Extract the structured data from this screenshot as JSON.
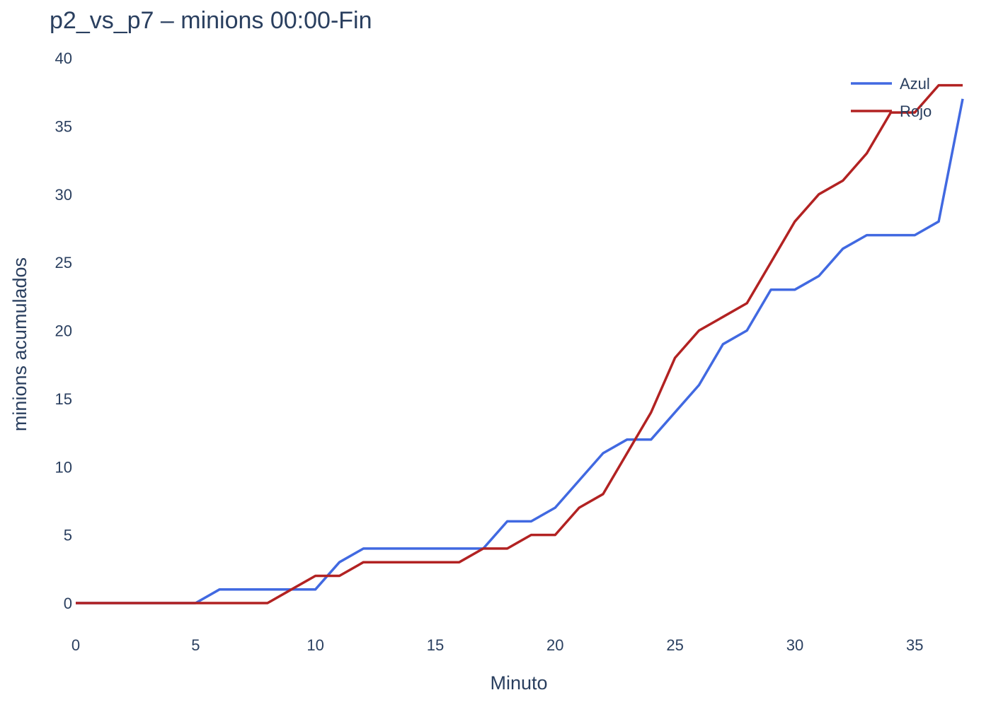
{
  "chart_data": {
    "type": "line",
    "title": "p2_vs_p7 – minions 00:00-Fin",
    "xlabel": "Minuto",
    "ylabel": "minions acumulados",
    "xlim": [
      0,
      37
    ],
    "ylim": [
      -2.2,
      40
    ],
    "x_ticks": [
      0,
      5,
      10,
      15,
      20,
      25,
      30,
      35
    ],
    "y_ticks": [
      0,
      5,
      10,
      15,
      20,
      25,
      30,
      35,
      40
    ],
    "grid": false,
    "legend_position": "top-right",
    "x": [
      0,
      1,
      2,
      3,
      4,
      5,
      6,
      7,
      8,
      9,
      10,
      11,
      12,
      13,
      14,
      15,
      16,
      17,
      18,
      19,
      20,
      21,
      22,
      23,
      24,
      25,
      26,
      27,
      28,
      29,
      30,
      31,
      32,
      33,
      34,
      35,
      36,
      37
    ],
    "series": [
      {
        "name": "Azul",
        "color": "#4169e1",
        "values": [
          0,
          0,
          0,
          0,
          0,
          0,
          1,
          1,
          1,
          1,
          1,
          3,
          4,
          4,
          4,
          4,
          4,
          4,
          6,
          6,
          7,
          9,
          11,
          12,
          12,
          14,
          16,
          19,
          20,
          23,
          23,
          24,
          26,
          27,
          27,
          27,
          28,
          37
        ]
      },
      {
        "name": "Rojo",
        "color": "#b22222",
        "values": [
          0,
          0,
          0,
          0,
          0,
          0,
          0,
          0,
          0,
          1,
          2,
          2,
          3,
          3,
          3,
          3,
          3,
          4,
          4,
          5,
          5,
          7,
          8,
          11,
          14,
          18,
          20,
          21,
          22,
          25,
          28,
          30,
          31,
          33,
          36,
          36,
          38,
          38
        ]
      }
    ]
  }
}
